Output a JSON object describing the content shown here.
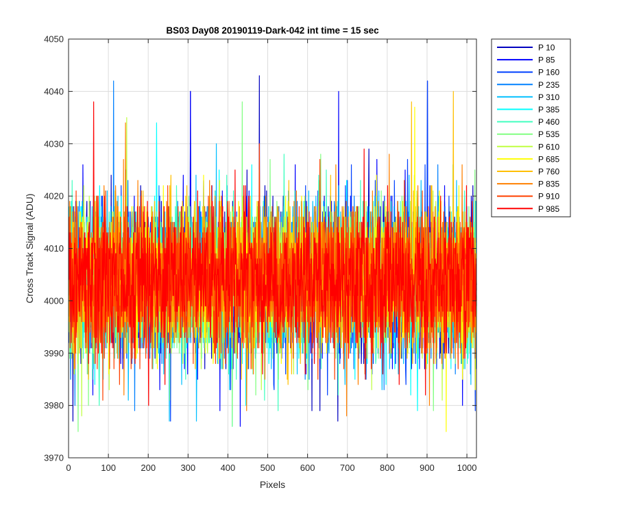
{
  "chart_data": {
    "type": "line",
    "title": "BS03 Day08 20190119-Dark-042 int time = 15 sec",
    "xlabel": "Pixels",
    "ylabel": "Cross Track Signal (ADU)",
    "xlim": [
      0,
      1024
    ],
    "ylim": [
      3970,
      4050
    ],
    "xticks": [
      0,
      100,
      200,
      300,
      400,
      500,
      600,
      700,
      800,
      900,
      1000
    ],
    "yticks": [
      3970,
      3980,
      3990,
      4000,
      4010,
      4020,
      4030,
      4040,
      4050
    ],
    "grid": true,
    "legend_position": "outside-top-right",
    "n_pixels": 1024,
    "series": [
      {
        "name": "P 10",
        "color": "#0000bf",
        "baseline": 4004,
        "noise_sd": 7,
        "peaks": [
          [
            478,
            4043
          ],
          [
            900,
            4042
          ],
          [
            305,
            4040
          ],
          [
            675,
            3977
          ],
          [
            10,
            3977
          ],
          [
            610,
            3979
          ],
          [
            630,
            3979
          ]
        ]
      },
      {
        "name": "P 85",
        "color": "#0000ff",
        "baseline": 4004,
        "noise_sd": 7,
        "peaks": [
          [
            677,
            4040
          ],
          [
            305,
            4040
          ],
          [
            430,
            3976
          ],
          [
            60,
            3982
          ]
        ]
      },
      {
        "name": "P 160",
        "color": "#0040ff",
        "baseline": 4004,
        "noise_sd": 7,
        "peaks": [
          [
            900,
            4042
          ],
          [
            255,
            3977
          ],
          [
            1020,
            3979
          ]
        ]
      },
      {
        "name": "P 235",
        "color": "#0080ff",
        "baseline": 4004,
        "noise_sd": 7,
        "peaks": [
          [
            112,
            4042
          ],
          [
            15,
            3980
          ],
          [
            165,
            3979
          ]
        ]
      },
      {
        "name": "P 310",
        "color": "#00bfff",
        "baseline": 4004,
        "noise_sd": 7,
        "peaks": [
          [
            370,
            4030
          ],
          [
            252,
            3977
          ],
          [
            320,
            3977
          ]
        ]
      },
      {
        "name": "P 385",
        "color": "#00ffff",
        "baseline": 4004,
        "noise_sd": 7,
        "peaks": [
          [
            220,
            4034
          ],
          [
            875,
            3979
          ],
          [
            410,
            3976
          ]
        ]
      },
      {
        "name": "P 460",
        "color": "#40ffbf",
        "baseline": 4004,
        "noise_sd": 7,
        "peaks": [
          [
            540,
            4028
          ],
          [
            525,
            3979
          ]
        ]
      },
      {
        "name": "P 535",
        "color": "#80ff80",
        "baseline": 4004,
        "noise_sd": 7,
        "peaks": [
          [
            435,
            4038
          ],
          [
            23,
            3975
          ],
          [
            410,
            3976
          ]
        ]
      },
      {
        "name": "P 610",
        "color": "#bfff40",
        "baseline": 4004,
        "noise_sd": 7,
        "peaks": [
          [
            145,
            4035
          ],
          [
            32,
            3978
          ]
        ]
      },
      {
        "name": "P 685",
        "color": "#ffff00",
        "baseline": 4004,
        "noise_sd": 7,
        "peaks": [
          [
            868,
            4037
          ],
          [
            947,
            3975
          ]
        ]
      },
      {
        "name": "P 760",
        "color": "#ffbf00",
        "baseline": 4004,
        "noise_sd": 7,
        "peaks": [
          [
            965,
            4040
          ],
          [
            860,
            4038
          ]
        ]
      },
      {
        "name": "P 835",
        "color": "#ff8000",
        "baseline": 4004,
        "noise_sd": 7,
        "peaks": [
          [
            142,
            4034
          ],
          [
            697,
            3978
          ],
          [
            905,
            3980
          ]
        ]
      },
      {
        "name": "P 910",
        "color": "#ff4000",
        "baseline": 4004,
        "noise_sd": 7,
        "peaks": [
          [
            478,
            4030
          ],
          [
            85,
            3981
          ]
        ]
      },
      {
        "name": "P 985",
        "color": "#ff0000",
        "baseline": 4004,
        "noise_sd": 7,
        "peaks": [
          [
            62,
            4038
          ],
          [
            200,
            3980
          ]
        ]
      }
    ]
  }
}
